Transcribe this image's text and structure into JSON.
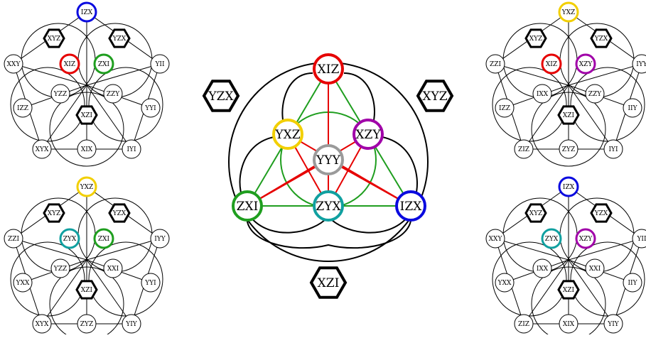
{
  "colors": {
    "red": "#e60000",
    "green": "#1f9e1f",
    "blue": "#0a0adf",
    "yellow": "#f2cf00",
    "purple": "#a000a8",
    "teal": "#10a0a0",
    "gray": "#9a9a9a",
    "black": "#000000"
  },
  "center": {
    "hexagons": [
      {
        "label": "YZX"
      },
      {
        "label": "XYZ"
      },
      {
        "label": "XZI"
      }
    ],
    "nodes": [
      {
        "label": "XIZ",
        "color": "red"
      },
      {
        "label": "YXZ",
        "color": "yellow"
      },
      {
        "label": "XZY",
        "color": "purple"
      },
      {
        "label": "YYY",
        "color": "gray"
      },
      {
        "label": "ZXI",
        "color": "green"
      },
      {
        "label": "ZYX",
        "color": "teal"
      },
      {
        "label": "IZX",
        "color": "blue"
      }
    ]
  },
  "panels": [
    {
      "id": "top-left",
      "top": {
        "label": "IZX",
        "color": "blue"
      },
      "hex": [
        "XYZ",
        "YZX",
        "XZI"
      ],
      "inner": [
        {
          "label": "XIZ",
          "color": "red"
        },
        {
          "label": "ZXI",
          "color": "green"
        }
      ],
      "outer": [
        "XXY",
        "YII",
        "IZZ",
        "YYI",
        "XYX",
        "XIX",
        "IYI"
      ],
      "mid": [
        "YZZ",
        "ZZY"
      ]
    },
    {
      "id": "top-right",
      "top": {
        "label": "YXZ",
        "color": "yellow"
      },
      "hex": [
        "XYZ",
        "YZX",
        "XZI"
      ],
      "inner": [
        {
          "label": "XIZ",
          "color": "red"
        },
        {
          "label": "XZY",
          "color": "purple"
        }
      ],
      "outer": [
        "ZZI",
        "IYY",
        "IZZ",
        "IIY",
        "ZIZ",
        "ZYZ",
        "IYI"
      ],
      "mid": [
        "IXX",
        "ZZY"
      ]
    },
    {
      "id": "bottom-left",
      "top": {
        "label": "YXZ",
        "color": "yellow"
      },
      "hex": [
        "XYZ",
        "YZX",
        "XZI"
      ],
      "inner": [
        {
          "label": "ZYX",
          "color": "teal"
        },
        {
          "label": "ZXI",
          "color": "green"
        }
      ],
      "outer": [
        "ZZI",
        "IYY",
        "YXX",
        "YYI",
        "XYX",
        "ZYZ",
        "YIY"
      ],
      "mid": [
        "YZZ",
        "XXI"
      ]
    },
    {
      "id": "bottom-right",
      "top": {
        "label": "IZX",
        "color": "blue"
      },
      "hex": [
        "XYZ",
        "YZX",
        "XZI"
      ],
      "inner": [
        {
          "label": "ZYX",
          "color": "teal"
        },
        {
          "label": "XZY",
          "color": "purple"
        }
      ],
      "outer": [
        "XXY",
        "YII",
        "YXX",
        "IIY",
        "ZIZ",
        "XIX",
        "YIY"
      ],
      "mid": [
        "IXX",
        "XXI"
      ]
    }
  ]
}
